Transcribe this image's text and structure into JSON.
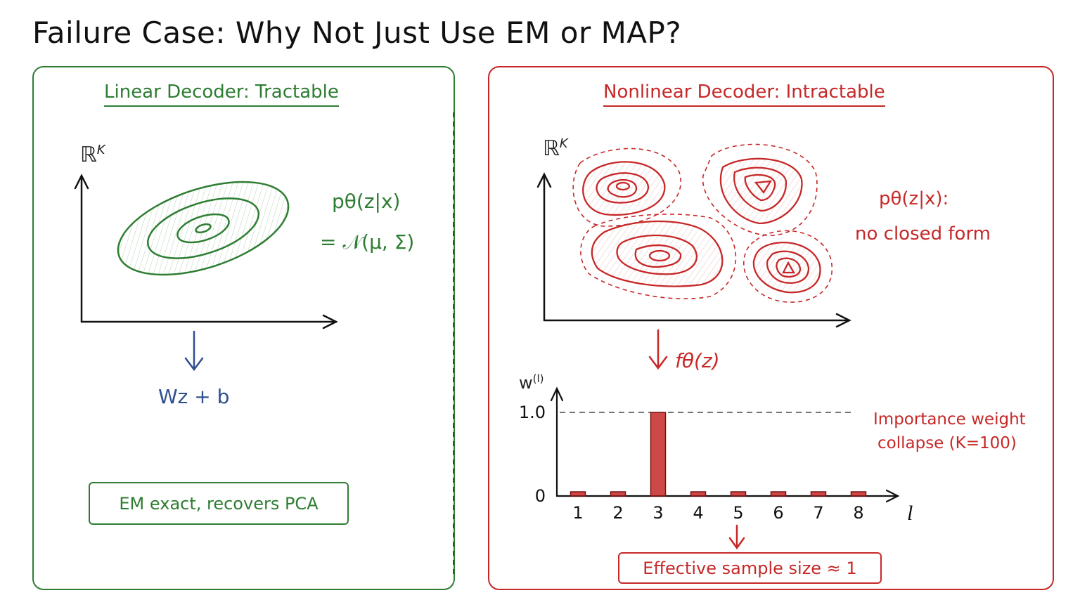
{
  "title": "Failure Case: Why Not Just Use EM or MAP?",
  "colors": {
    "linear": "#2e7d32",
    "nonlinear": "#c62828",
    "decoder": "#2f4f8f"
  },
  "left": {
    "heading": "Linear Decoder: Tractable",
    "space_label": "ℝ",
    "space_sup": "K",
    "posterior_line1": "pθ(z|x)",
    "posterior_line2": "= 𝒩(μ, Σ)",
    "decoder": "Wz + b",
    "result": "EM exact, recovers PCA"
  },
  "right": {
    "heading": "Nonlinear Decoder: Intractable",
    "space_label": "ℝ",
    "space_sup": "K",
    "posterior_line1": "pθ(z|x):",
    "posterior_line2": "no closed form",
    "decoder": "fθ(z)",
    "weight_label": "w",
    "weight_sup": "(l)",
    "annotation_line1": "Importance weight",
    "annotation_line2": "collapse (K=100)",
    "result": "Effective sample size ≈ 1"
  },
  "chart_data": {
    "type": "bar",
    "categories": [
      "1",
      "2",
      "3",
      "4",
      "5",
      "6",
      "7",
      "8"
    ],
    "values": [
      0.01,
      0.01,
      1.0,
      0.01,
      0.01,
      0.01,
      0.01,
      0.01
    ],
    "xlabel": "l",
    "ylabel": "w(l)",
    "yticks": [
      "0",
      "1.0"
    ],
    "ylim": [
      0,
      1.0
    ],
    "reference_line": 1.0
  }
}
